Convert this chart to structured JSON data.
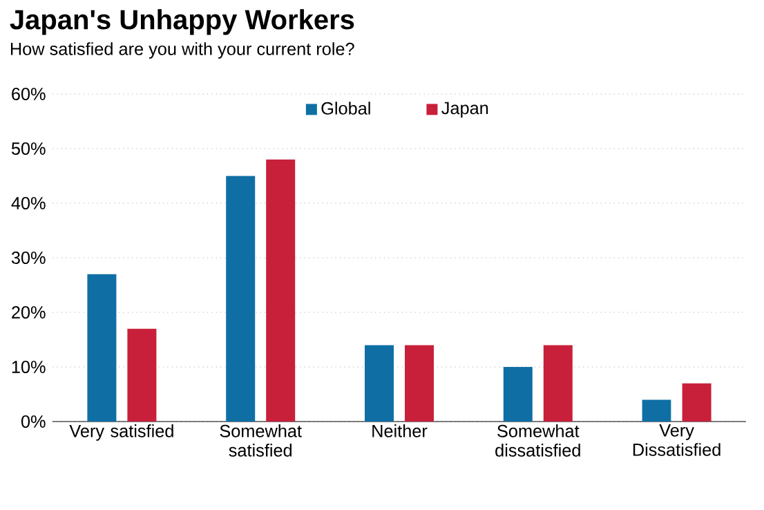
{
  "chart_data": {
    "type": "bar",
    "title": "Japan's Unhappy Workers",
    "subtitle": "How satisfied are you with your current role?",
    "categories": [
      "Very satisfied",
      "Somewhat satisfied",
      "Neither",
      "Somewhat dissatisfied",
      "Very Dissatisfied"
    ],
    "series": [
      {
        "name": "Global",
        "color": "#0f6fa5",
        "values": [
          27,
          45,
          14,
          10,
          4
        ]
      },
      {
        "name": "Japan",
        "color": "#c8203a",
        "values": [
          17,
          48,
          14,
          14,
          7
        ]
      }
    ],
    "ylim": [
      0,
      60
    ],
    "yticks": [
      {
        "value": 0,
        "label": "0%"
      },
      {
        "value": 10,
        "label": "10%"
      },
      {
        "value": 20,
        "label": "20%"
      },
      {
        "value": 30,
        "label": "30%"
      },
      {
        "value": 40,
        "label": "40%"
      },
      {
        "value": 50,
        "label": "50%"
      },
      {
        "value": 60,
        "label": "60%"
      }
    ],
    "grid": "y",
    "legend": "top"
  }
}
